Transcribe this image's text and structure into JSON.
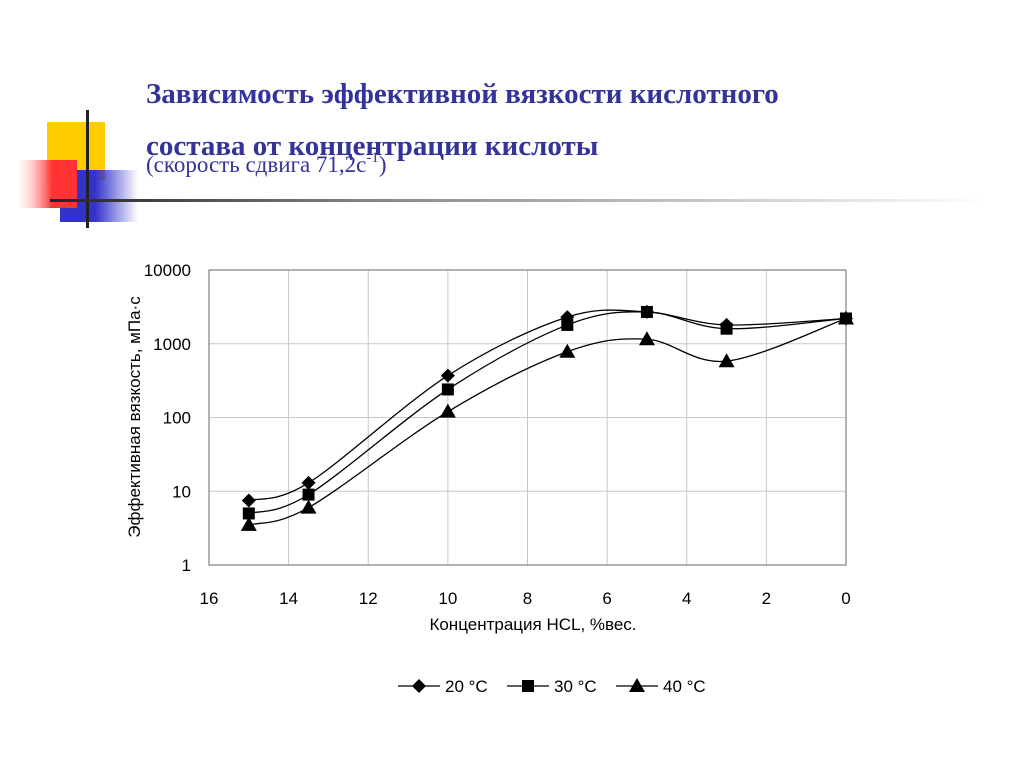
{
  "slide": {
    "title_line1": "Зависимость эффективной вязкости кислотного",
    "title_line2": "состава от концентрации кислоты",
    "subtitle_prefix": "(скорость сдвига 71,2с",
    "subtitle_exp": "-1",
    "subtitle_suffix": ")"
  },
  "colors": {
    "title": "#333399",
    "deco_yellow": "#ffcc00",
    "deco_red": "#ff3333",
    "deco_blue": "#3333cc"
  },
  "chart_data": {
    "type": "line",
    "title": "",
    "xlabel": "Концентрация HCL, %вес.",
    "ylabel": "Эффективная вязкость, мПа·с",
    "x_reversed": true,
    "xlim": [
      16,
      0
    ],
    "x_ticks": [
      16,
      14,
      12,
      10,
      8,
      6,
      4,
      2,
      0
    ],
    "y_scale": "log",
    "ylim": [
      1,
      10000
    ],
    "y_ticks": [
      1,
      10,
      100,
      1000,
      10000
    ],
    "grid": true,
    "legend_position": "bottom",
    "series": [
      {
        "name": "20 °C",
        "marker": "diamond",
        "x": [
          15,
          13.5,
          10,
          7,
          5,
          3,
          0
        ],
        "y": [
          7.5,
          13,
          370,
          2300,
          2700,
          1800,
          2200
        ]
      },
      {
        "name": "30 °C",
        "marker": "square",
        "x": [
          15,
          13.5,
          10,
          7,
          5,
          3,
          0
        ],
        "y": [
          5,
          9,
          240,
          1800,
          2700,
          1600,
          2200
        ]
      },
      {
        "name": "40 °C",
        "marker": "triangle",
        "x": [
          15,
          13.5,
          10,
          7,
          5,
          3,
          0
        ],
        "y": [
          3.5,
          6,
          120,
          780,
          1150,
          580,
          2200
        ]
      }
    ]
  }
}
